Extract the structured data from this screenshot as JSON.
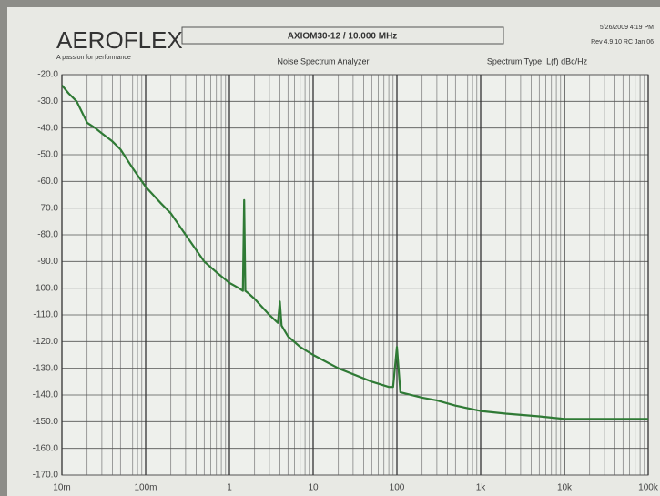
{
  "header": {
    "brand": "AEROFLEX",
    "tagline": "A passion for performance",
    "date": "5/26/2009 4:19 PM",
    "revision": "Rev 4.9.10 RC Jan 06"
  },
  "chart_data": {
    "type": "line",
    "title": "AXIOM30-12 / 10.000 MHz",
    "subtitle": "Noise Spectrum Analyzer",
    "spectrum_type": "Spectrum Type: L(f) dBc/Hz",
    "log_x": true,
    "grid": true,
    "minor_grid": true,
    "color": "#2f7a35",
    "x": [
      0.01,
      0.012,
      0.015,
      0.02,
      0.025,
      0.03,
      0.04,
      0.05,
      0.07,
      0.1,
      0.15,
      0.2,
      0.3,
      0.5,
      0.7,
      1,
      1.3,
      1.45,
      1.5,
      1.55,
      1.7,
      2,
      3,
      3.8,
      4,
      4.2,
      5,
      7,
      10,
      20,
      50,
      80,
      90,
      100,
      110,
      200,
      300,
      500,
      1000,
      2000,
      5000,
      10000,
      20000,
      50000,
      100000
    ],
    "values": [
      -24,
      -27,
      -30,
      -38,
      -40,
      -42,
      -45,
      -48,
      -55,
      -62,
      -68,
      -72,
      -80,
      -90,
      -94,
      -98,
      -100,
      -101,
      -67,
      -101,
      -102,
      -104,
      -110,
      -113,
      -105,
      -114,
      -118,
      -122,
      -125,
      -130,
      -135,
      -137,
      -137,
      -122,
      -139,
      -141,
      -142,
      -144,
      -146,
      -147,
      -148,
      -149,
      -149,
      -149,
      -149
    ],
    "xlim": [
      0.01,
      100000
    ],
    "xticks": [
      {
        "value": 0.01,
        "label": "10m"
      },
      {
        "value": 0.1,
        "label": "100m"
      },
      1,
      10,
      100,
      {
        "value": 1000,
        "label": "1k"
      },
      {
        "value": 10000,
        "label": "10k"
      },
      {
        "value": 100000,
        "label": "100k"
      }
    ],
    "ylim": [
      -170,
      -20
    ],
    "yticks": [
      {
        "value": -20,
        "label": "-20.0"
      },
      {
        "value": -30,
        "label": "-30.0"
      },
      {
        "value": -40,
        "label": "-40.0"
      },
      {
        "value": -50,
        "label": "-50.0"
      },
      {
        "value": -60,
        "label": "-60.0"
      },
      {
        "value": -70,
        "label": "-70.0"
      },
      {
        "value": -80,
        "label": "-80.0"
      },
      {
        "value": -90,
        "label": "-90.0"
      },
      {
        "value": -100,
        "label": "-100.0"
      },
      {
        "value": -110,
        "label": "-110.0"
      },
      {
        "value": -120,
        "label": "-120.0"
      },
      {
        "value": -130,
        "label": "-130.0"
      },
      {
        "value": -140,
        "label": "-140.0"
      },
      {
        "value": -150,
        "label": "-150.0"
      },
      {
        "value": -160,
        "label": "-160.0"
      },
      {
        "value": -170,
        "label": "-170.0"
      }
    ]
  }
}
